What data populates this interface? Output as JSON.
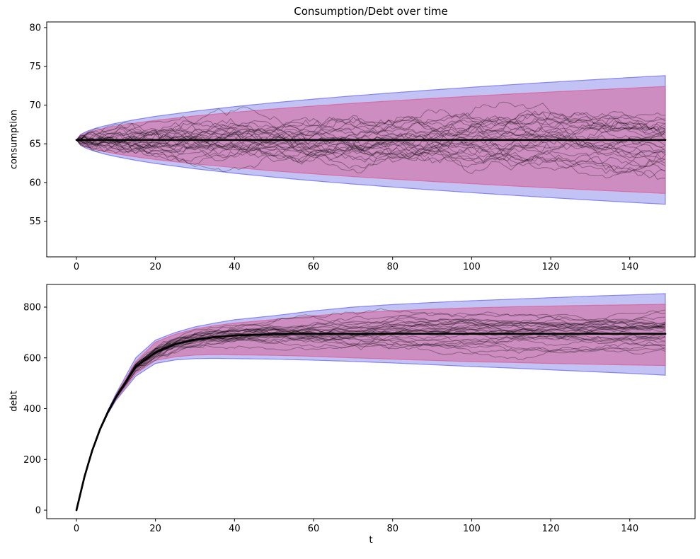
{
  "figure": {
    "title": "Consumption/Debt over time",
    "background": "#ffffff"
  },
  "chart_data": [
    {
      "type": "area",
      "subtype": "fan-band-with-sample-paths",
      "title": "Consumption/Debt over time",
      "ylabel": "consumption",
      "xlabel": "",
      "x_ticks": [
        0,
        20,
        40,
        60,
        80,
        100,
        120,
        140
      ],
      "y_ticks": [
        55,
        60,
        65,
        70,
        75,
        80
      ],
      "xlim": [
        -7.52,
        156.52
      ],
      "ylim": [
        50.41,
        80.73
      ],
      "grid_on": false,
      "legend": "none",
      "x": [
        0,
        1,
        2,
        3,
        5,
        7,
        10,
        15,
        20,
        30,
        40,
        50,
        60,
        70,
        80,
        90,
        100,
        110,
        120,
        130,
        140,
        149
      ],
      "series": [
        {
          "name": "outer-band",
          "role": "band",
          "fill": "#c2c2f5",
          "edge": "rgba(118,118,235,0.85)",
          "hi": [
            65.5,
            66.18,
            66.46,
            66.68,
            67.02,
            67.3,
            67.65,
            68.13,
            68.54,
            69.22,
            69.8,
            70.31,
            70.77,
            71.19,
            71.58,
            71.95,
            72.3,
            72.63,
            72.95,
            73.25,
            73.55,
            73.8
          ],
          "lo": [
            65.5,
            64.82,
            64.54,
            64.32,
            63.98,
            63.7,
            63.35,
            62.87,
            62.46,
            61.78,
            61.2,
            60.69,
            60.23,
            59.81,
            59.42,
            59.05,
            58.7,
            58.37,
            58.05,
            57.75,
            57.45,
            57.2
          ]
        },
        {
          "name": "inner-band",
          "role": "band",
          "fill": "#cd8dc0",
          "edge": "rgba(222,77,133,0.6)",
          "hi": [
            65.5,
            66.07,
            66.3,
            66.48,
            66.76,
            67.0,
            67.29,
            67.69,
            68.03,
            68.6,
            69.07,
            69.5,
            69.88,
            70.23,
            70.55,
            70.86,
            71.15,
            71.43,
            71.69,
            71.94,
            72.19,
            72.4
          ],
          "lo": [
            65.5,
            64.93,
            64.7,
            64.52,
            64.24,
            64.0,
            63.71,
            63.31,
            62.97,
            62.4,
            61.93,
            61.5,
            61.12,
            60.77,
            60.45,
            60.14,
            59.85,
            59.57,
            59.31,
            59.06,
            58.81,
            58.6
          ]
        },
        {
          "name": "mean-line",
          "role": "line",
          "color": "#000000",
          "width": 2.7,
          "values": [
            65.5,
            65.5,
            65.5,
            65.5,
            65.5,
            65.5,
            65.5,
            65.5,
            65.5,
            65.5,
            65.5,
            65.5,
            65.5,
            65.5,
            65.5,
            65.5,
            65.5,
            65.5,
            65.5,
            65.5,
            65.5,
            65.5
          ]
        },
        {
          "name": "sample-paths",
          "role": "paths",
          "n": 30,
          "seed": 11,
          "step_sigma": 0.33,
          "ramp": 0,
          "revert": 0.012,
          "color": "rgba(0,0,0,0.27)",
          "width": 1.2,
          "t_max": 149
        }
      ]
    },
    {
      "type": "area",
      "subtype": "fan-band-with-sample-paths",
      "ylabel": "debt",
      "xlabel": "t",
      "x_ticks": [
        0,
        20,
        40,
        60,
        80,
        100,
        120,
        140
      ],
      "y_ticks": [
        0,
        200,
        400,
        600,
        800
      ],
      "xlim": [
        -7.52,
        156.52
      ],
      "ylim": [
        -33.4,
        889.2
      ],
      "grid_on": false,
      "legend": "none",
      "x": [
        0,
        2,
        4,
        6,
        8,
        10,
        15,
        20,
        25,
        30,
        35,
        40,
        50,
        60,
        70,
        80,
        90,
        100,
        110,
        120,
        130,
        140,
        149
      ],
      "series": [
        {
          "name": "outer-band",
          "role": "band",
          "fill": "#c2c2f5",
          "edge": "rgba(118,118,235,0.85)",
          "hi": [
            0,
            132,
            238,
            324,
            394,
            458,
            600,
            670,
            700,
            722,
            737,
            750,
            766,
            785,
            800,
            810,
            818,
            825,
            831,
            837,
            843,
            848,
            853
          ],
          "lo": [
            0,
            128,
            231,
            315,
            381,
            432,
            528,
            578,
            592,
            597,
            598,
            597,
            595,
            591,
            586,
            580,
            573,
            566,
            560,
            553,
            546,
            539,
            532
          ]
        },
        {
          "name": "inner-band",
          "role": "band",
          "fill": "#cd8dc0",
          "edge": "rgba(222,77,133,0.6)",
          "hi": [
            0,
            131,
            237,
            322,
            391,
            452,
            585,
            662,
            693,
            714,
            727,
            737,
            751,
            766,
            777,
            785,
            792,
            797,
            801,
            804,
            807,
            809,
            811
          ],
          "lo": [
            0,
            129,
            233,
            317,
            383,
            436,
            538,
            590,
            604,
            611,
            613,
            612,
            610,
            606,
            600,
            595,
            590,
            585,
            582,
            578,
            575,
            572,
            570
          ]
        },
        {
          "name": "mean-line",
          "role": "line",
          "color": "#000000",
          "width": 2.7,
          "values": [
            0,
            130,
            235,
            320,
            388,
            445,
            565,
            621,
            654,
            672,
            682,
            688,
            694,
            695,
            695,
            695,
            695,
            695,
            695,
            695,
            695,
            695,
            695
          ]
        },
        {
          "name": "sample-paths",
          "role": "paths",
          "n": 30,
          "seed": 23,
          "step_sigma": 4.6,
          "ramp": 20,
          "revert": 0.006,
          "color": "rgba(0,0,0,0.27)",
          "width": 1.2,
          "t_max": 149
        }
      ]
    }
  ]
}
